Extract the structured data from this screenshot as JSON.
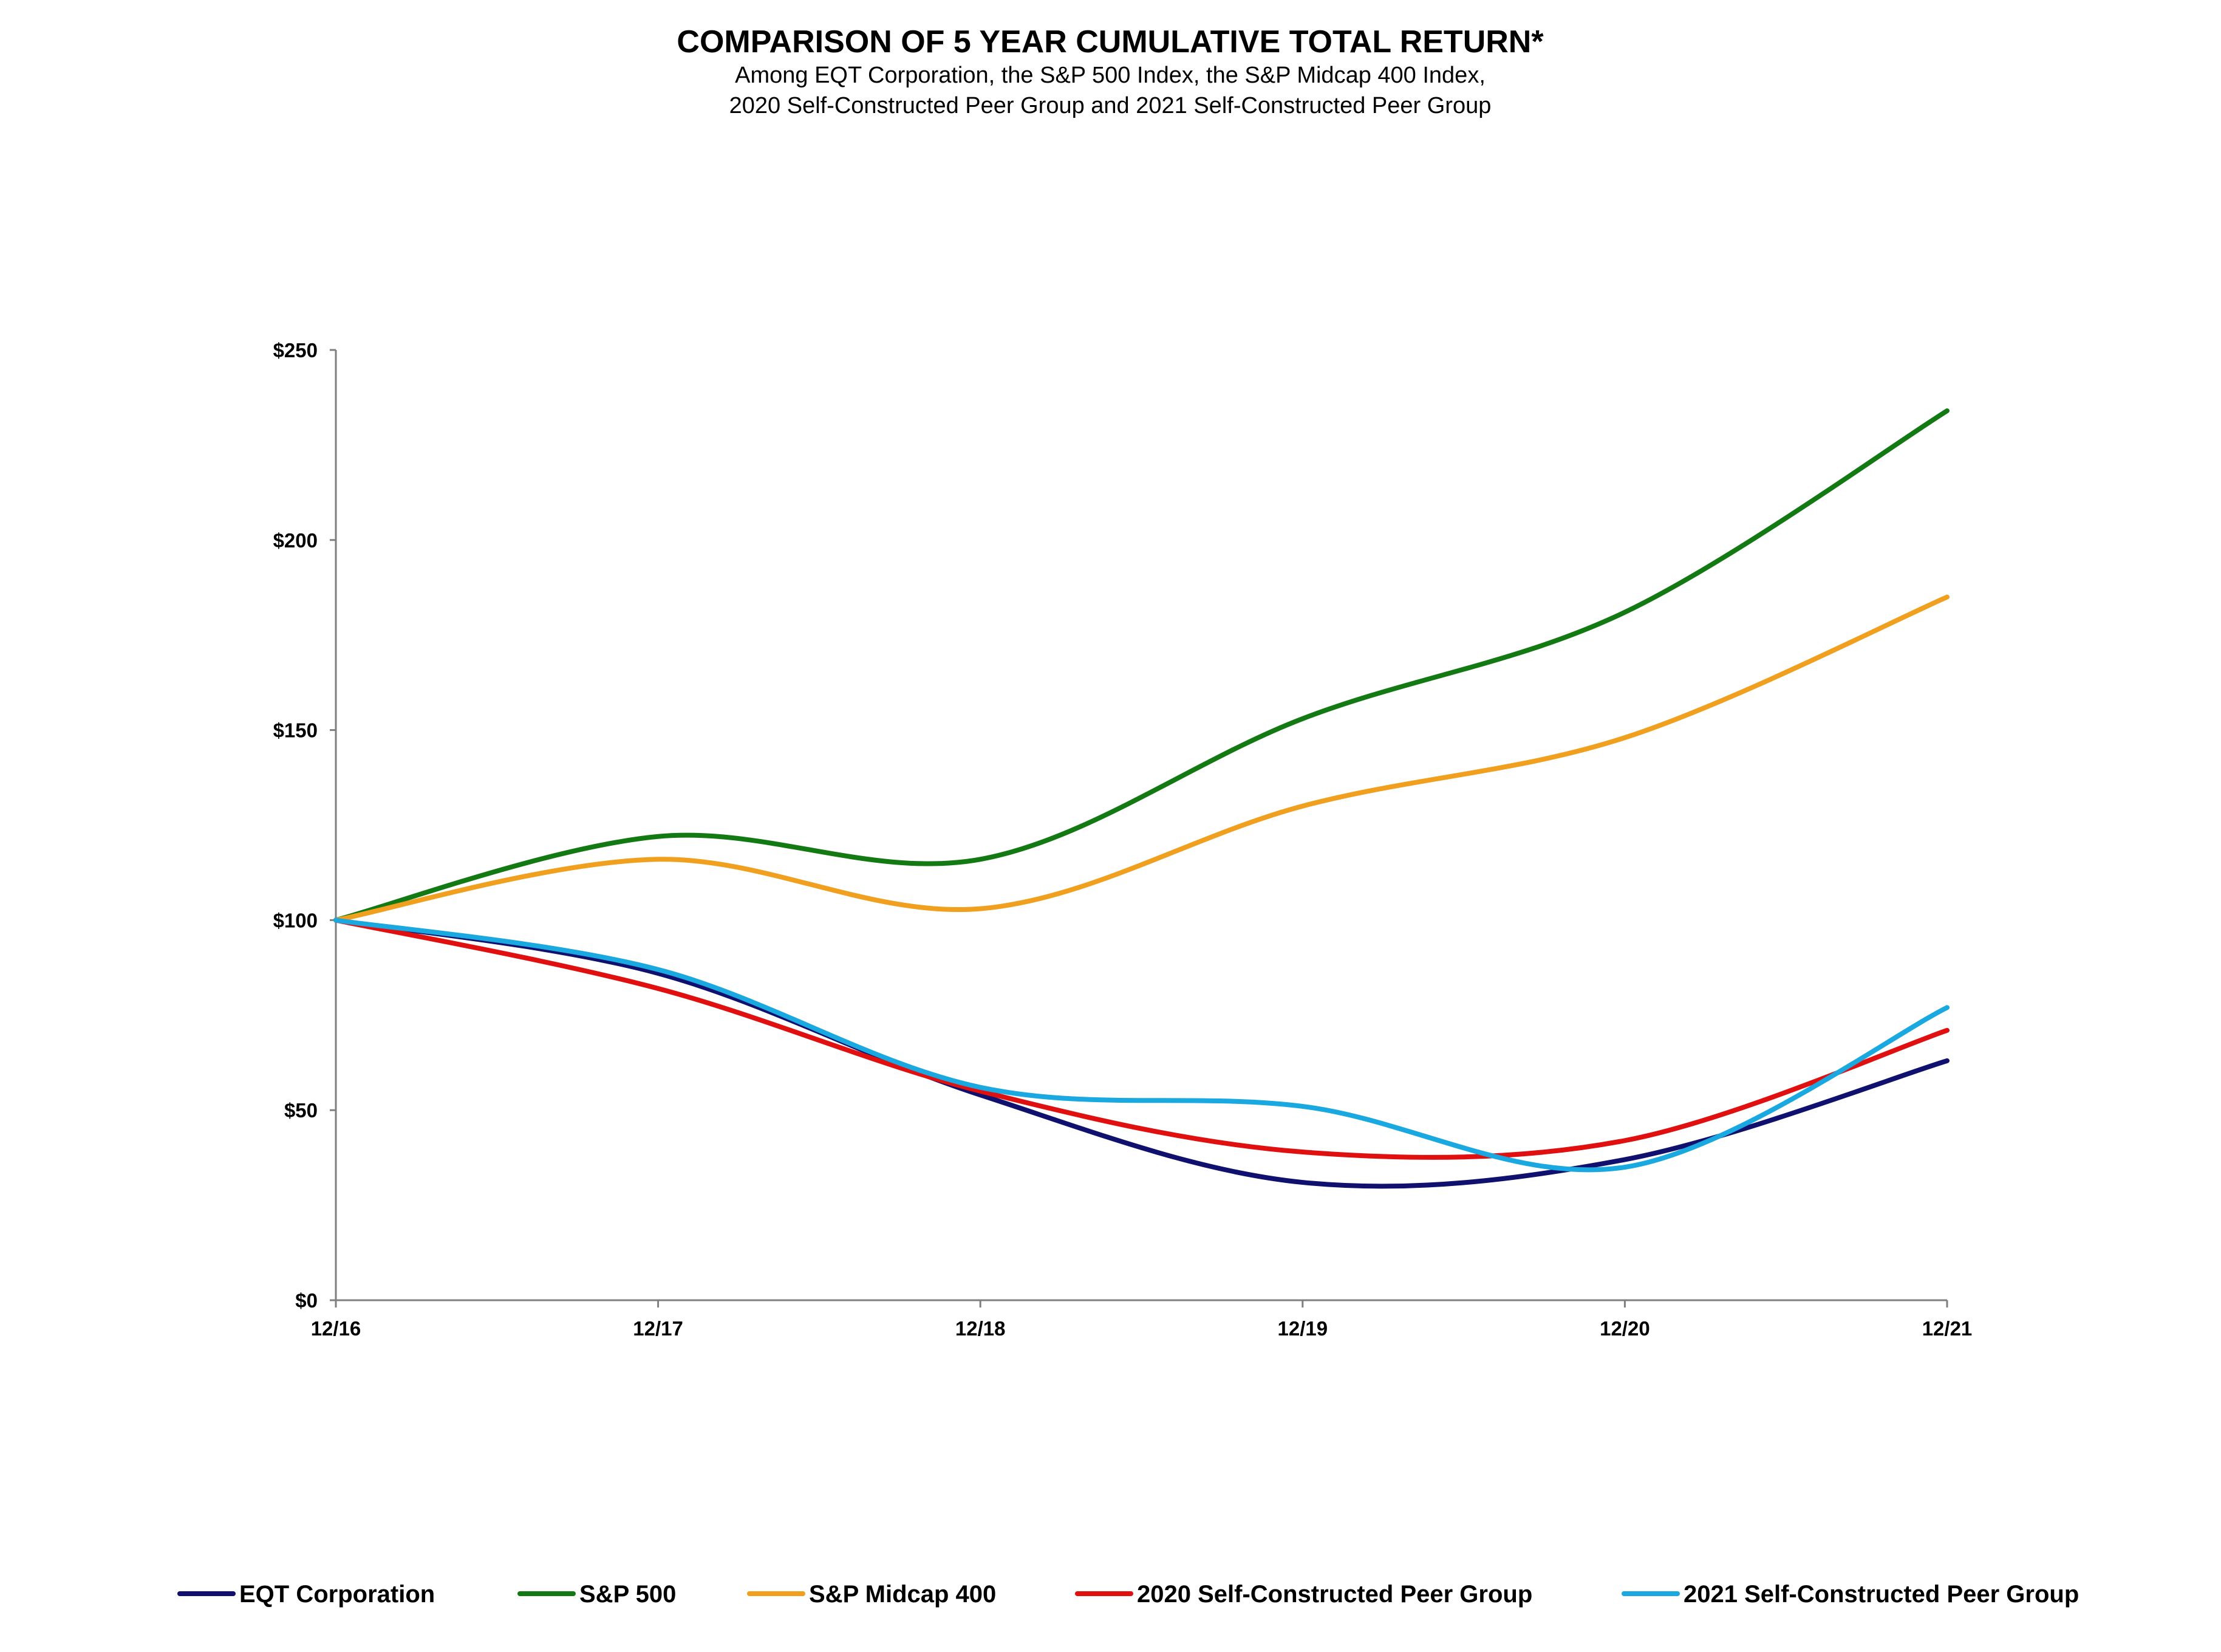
{
  "chart_data": {
    "type": "line",
    "title": "COMPARISON OF 5 YEAR CUMULATIVE TOTAL RETURN*",
    "subtitle_lines": [
      "Among EQT Corporation, the S&P 500 Index, the S&P Midcap 400 Index,",
      "2020 Self-Constructed Peer Group and 2021 Self-Constructed Peer Group"
    ],
    "categories": [
      "12/16",
      "12/17",
      "12/18",
      "12/19",
      "12/20",
      "12/21"
    ],
    "y_ticks": [
      0,
      50,
      100,
      150,
      200,
      250
    ],
    "y_tick_labels": [
      "$0",
      "$50",
      "$100",
      "$150",
      "$200",
      "$250"
    ],
    "ylim": [
      0,
      250
    ],
    "xlabel": "",
    "ylabel": "",
    "grid": false,
    "legend_position": "bottom",
    "series": [
      {
        "name": "EQT Corporation",
        "color": "#10106e",
        "values": [
          100,
          86,
          54,
          31,
          37,
          63
        ]
      },
      {
        "name": "S&P 500",
        "color": "#137a13",
        "values": [
          100,
          122,
          116,
          153,
          181,
          234
        ]
      },
      {
        "name": "S&P Midcap 400",
        "color": "#f0a01e",
        "values": [
          100,
          116,
          103,
          130,
          148,
          185
        ]
      },
      {
        "name": "2020 Self-Constructed Peer Group",
        "color": "#e01010",
        "values": [
          100,
          82,
          55,
          39,
          42,
          71
        ]
      },
      {
        "name": "2021 Self-Constructed Peer Group",
        "color": "#1aa8e0",
        "values": [
          100,
          87,
          56,
          51,
          35,
          77
        ]
      }
    ]
  }
}
